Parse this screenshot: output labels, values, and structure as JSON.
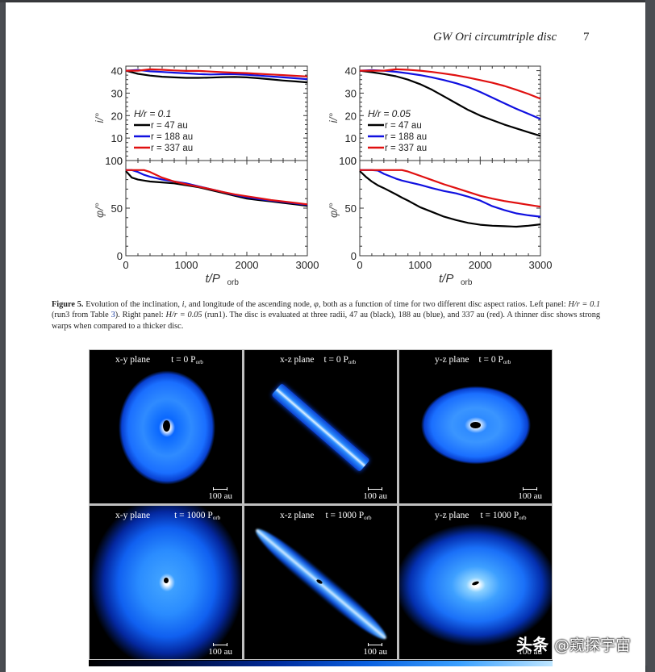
{
  "running_head": {
    "title": "GW Ori circumtriple disc",
    "page_number": "7"
  },
  "figure5": {
    "caption_label": "Figure 5.",
    "caption_text_1": " Evolution of the inclination, ",
    "caption_i": "i",
    "caption_text_2": ", and longitude of the ascending node, ",
    "caption_phi": "φ",
    "caption_text_3": ", both as a function of time for two different disc aspect ratios. Left panel: ",
    "caption_hr1": "H/r = 0.1",
    "caption_text_4": " (run3 from Table ",
    "caption_table_ref": "3",
    "caption_text_5": "). Right panel: ",
    "caption_hr2": "H/r = 0.05",
    "caption_text_6": " (run1). The disc is evaluated at three radii, 47 au (black), 188 au (blue), and 337 au (red). A thinner disc shows strong warps when compared to a thicker disc."
  },
  "chart_data": [
    {
      "type": "line",
      "panel": "top-left",
      "title": "",
      "legend_title": "H/r = 0.1",
      "xlabel": "t/P_orb",
      "ylabel": "i/°",
      "xlim": [
        0,
        3000
      ],
      "ylim": [
        0,
        42
      ],
      "yticks": [
        0,
        10,
        20,
        30,
        40
      ],
      "x": [
        0,
        200,
        400,
        600,
        800,
        1000,
        1200,
        1400,
        1600,
        1800,
        2000,
        2200,
        2400,
        2600,
        2800,
        3000
      ],
      "series": [
        {
          "name": "r = 47 au",
          "color": "#000000",
          "values": [
            40,
            38.6,
            37.8,
            37.3,
            37.0,
            36.8,
            36.8,
            36.9,
            37.1,
            37.2,
            37.0,
            36.6,
            36.1,
            35.6,
            35.2,
            34.8
          ]
        },
        {
          "name": "r = 188 au",
          "color": "#1010e0",
          "values": [
            40,
            40.3,
            39.7,
            39.4,
            39.1,
            38.8,
            38.5,
            38.3,
            38.4,
            38.4,
            38.2,
            37.8,
            37.4,
            37.0,
            36.6,
            36.2
          ]
        },
        {
          "name": "r = 337 au",
          "color": "#e01010",
          "values": [
            40,
            40.0,
            40.6,
            40.4,
            40.1,
            39.9,
            39.9,
            39.6,
            39.3,
            39.1,
            38.9,
            38.6,
            38.3,
            38.0,
            37.7,
            37.4
          ]
        }
      ]
    },
    {
      "type": "line",
      "panel": "bottom-left",
      "xlabel": "t/P_orb",
      "ylabel": "φ/°",
      "xlim": [
        0,
        3000
      ],
      "ylim": [
        0,
        100
      ],
      "yticks": [
        0,
        50,
        100
      ],
      "xticks": [
        0,
        1000,
        2000,
        3000
      ],
      "x": [
        0,
        100,
        200,
        300,
        400,
        600,
        800,
        1000,
        1200,
        1400,
        1600,
        1800,
        2000,
        2200,
        2400,
        2600,
        2800,
        3000
      ],
      "series": [
        {
          "name": "r = 47 au",
          "color": "#000000",
          "values": [
            89,
            82,
            80,
            79,
            78,
            77,
            76,
            74,
            72,
            69,
            66,
            63,
            60,
            58.5,
            57,
            55.5,
            54,
            52.5
          ]
        },
        {
          "name": "r = 188 au",
          "color": "#1010e0",
          "values": [
            90,
            90,
            88,
            85,
            83,
            80,
            78,
            76,
            73,
            70,
            67,
            64,
            61.5,
            59.5,
            58,
            56.5,
            55,
            53.5
          ]
        },
        {
          "name": "r = 337 au",
          "color": "#e01010",
          "values": [
            90,
            90,
            90,
            90,
            88,
            82,
            78,
            75,
            72.5,
            70,
            67,
            64.5,
            62.5,
            60.5,
            58.5,
            57,
            55.5,
            54
          ]
        }
      ]
    },
    {
      "type": "line",
      "panel": "top-right",
      "legend_title": "H/r = 0.05",
      "xlabel": "t/P_orb",
      "ylabel": "i/°",
      "xlim": [
        0,
        3000
      ],
      "ylim": [
        0,
        42
      ],
      "yticks": [
        0,
        10,
        20,
        30,
        40
      ],
      "x": [
        0,
        200,
        400,
        600,
        800,
        1000,
        1200,
        1400,
        1600,
        1800,
        2000,
        2200,
        2400,
        2600,
        2800,
        3000
      ],
      "series": [
        {
          "name": "r = 47 au",
          "color": "#000000",
          "values": [
            40,
            39.3,
            38.5,
            37.5,
            36,
            34,
            31.5,
            28.5,
            25.5,
            22.5,
            20,
            18,
            16,
            14.3,
            12.6,
            11
          ]
        },
        {
          "name": "r = 188 au",
          "color": "#1010e0",
          "values": [
            40,
            40.2,
            40,
            39.5,
            38.8,
            38,
            37,
            35.8,
            34.4,
            32.7,
            30.5,
            28,
            25.5,
            23,
            20.8,
            18.5
          ]
        },
        {
          "name": "r = 337 au",
          "color": "#e01010",
          "values": [
            40,
            40,
            40,
            40.6,
            40.4,
            40,
            39.4,
            38.7,
            37.9,
            36.9,
            35.8,
            34.6,
            33.2,
            31.5,
            29.6,
            27.5
          ]
        }
      ]
    },
    {
      "type": "line",
      "panel": "bottom-right",
      "xlabel": "t/P_orb",
      "ylabel": "φ/°",
      "xlim": [
        0,
        3000
      ],
      "ylim": [
        0,
        100
      ],
      "yticks": [
        0,
        50,
        100
      ],
      "xticks": [
        0,
        1000,
        2000,
        3000
      ],
      "x": [
        0,
        100,
        200,
        300,
        400,
        600,
        700,
        800,
        1000,
        1200,
        1400,
        1600,
        1800,
        2000,
        2200,
        2400,
        2600,
        2800,
        3000
      ],
      "series": [
        {
          "name": "r = 47 au",
          "color": "#000000",
          "values": [
            89,
            83,
            78,
            74,
            71,
            64.5,
            61,
            58,
            51,
            46,
            41,
            37.5,
            34.5,
            32.5,
            31.5,
            31,
            30.5,
            31.5,
            33
          ]
        },
        {
          "name": "r = 188 au",
          "color": "#1010e0",
          "values": [
            90,
            90,
            90,
            89.5,
            86,
            81,
            79,
            77.5,
            74.5,
            71,
            68,
            65.5,
            62,
            58,
            52,
            48,
            44.5,
            42.5,
            41
          ]
        },
        {
          "name": "r = 337 au",
          "color": "#e01010",
          "values": [
            90,
            90,
            90,
            90,
            90,
            90,
            90,
            88.5,
            84,
            79.5,
            75,
            71,
            67,
            63,
            60,
            57.5,
            55.5,
            53.5,
            51.5
          ]
        }
      ]
    }
  ],
  "figure6_panels": [
    {
      "plane": "x-y plane",
      "time": "t = 0 P",
      "time_sub": "orb",
      "scale": "100 au"
    },
    {
      "plane": "x-z plane",
      "time": "t = 0 P",
      "time_sub": "orb",
      "scale": "100 au"
    },
    {
      "plane": "y-z plane",
      "time": "t = 0 P",
      "time_sub": "orb",
      "scale": "100 au"
    },
    {
      "plane": "x-y plane",
      "time": "t = 1000 P",
      "time_sub": "orb",
      "scale": "100 au"
    },
    {
      "plane": "x-z plane",
      "time": "t = 1000 P",
      "time_sub": "orb",
      "scale": "100 au"
    },
    {
      "plane": "y-z plane",
      "time": "t = 1000 P",
      "time_sub": "orb",
      "scale": "100 au"
    }
  ],
  "axis_labels": {
    "x": "t/P",
    "x_sub": "orb",
    "y_incl": "i/°",
    "y_phi": "φ/°"
  },
  "watermark": {
    "brand": "头条",
    "handle": "@窥探宇宙"
  }
}
